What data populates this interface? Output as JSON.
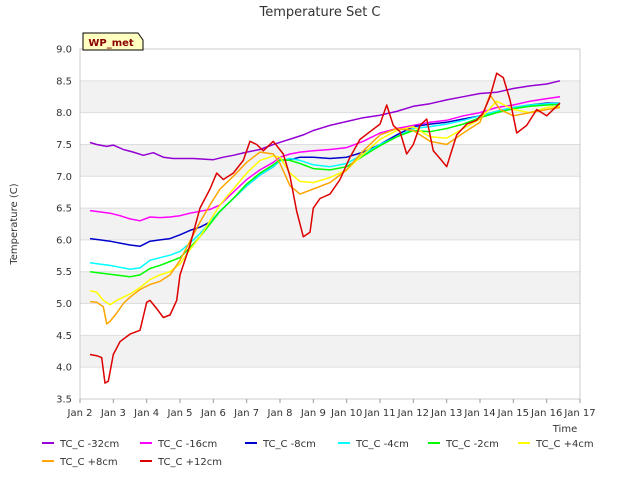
{
  "chart_data": {
    "type": "line",
    "title": "Temperature Set C",
    "xlabel": "Time",
    "ylabel": "Temperature (C)",
    "site_badge": "WP_met",
    "ylim": [
      3.5,
      9.0
    ],
    "xlim": [
      2,
      17
    ],
    "yticks": [
      "3.5",
      "4.0",
      "4.5",
      "5.0",
      "5.5",
      "6.0",
      "6.5",
      "7.0",
      "7.5",
      "8.0",
      "8.5",
      "9.0"
    ],
    "xticks": [
      "Jan 2",
      "Jan 3",
      "Jan 4",
      "Jan 5",
      "Jan 6",
      "Jan 7",
      "Jan 8",
      "Jan 9",
      "Jan 10",
      "Jan 11",
      "Jan 12",
      "Jan 13",
      "Jan 14",
      "Jan 15",
      "Jan 16",
      "Jan 17"
    ],
    "grid": "horizontal bands",
    "legend_position": "bottom",
    "series": [
      {
        "name": "TC_C -32cm",
        "color": "#9400d3",
        "x": [
          2.3,
          2.5,
          2.8,
          3.0,
          3.3,
          3.6,
          3.9,
          4.2,
          4.5,
          4.8,
          5.1,
          5.4,
          5.7,
          6.0,
          6.3,
          6.6,
          7.0,
          7.4,
          7.8,
          8.1,
          8.4,
          8.7,
          9.0,
          9.5,
          10.0,
          10.5,
          11.0,
          11.5,
          12.0,
          12.5,
          13.0,
          13.5,
          14.0,
          14.5,
          15.0,
          15.5,
          16.0,
          16.4
        ],
        "y": [
          7.53,
          7.5,
          7.47,
          7.49,
          7.42,
          7.38,
          7.33,
          7.37,
          7.3,
          7.28,
          7.28,
          7.28,
          7.27,
          7.26,
          7.3,
          7.33,
          7.38,
          7.42,
          7.5,
          7.55,
          7.6,
          7.65,
          7.72,
          7.8,
          7.86,
          7.92,
          7.96,
          8.02,
          8.1,
          8.14,
          8.2,
          8.25,
          8.3,
          8.32,
          8.38,
          8.42,
          8.45,
          8.5
        ]
      },
      {
        "name": "TC_C -16cm",
        "color": "#ff00ff",
        "x": [
          2.3,
          2.6,
          2.9,
          3.2,
          3.5,
          3.8,
          4.1,
          4.4,
          4.7,
          5.0,
          5.3,
          5.6,
          5.9,
          6.2,
          6.6,
          7.0,
          7.4,
          7.8,
          8.0,
          8.3,
          8.6,
          9.0,
          9.5,
          10.0,
          10.5,
          11.0,
          11.5,
          12.0,
          12.5,
          13.0,
          13.5,
          14.0,
          14.5,
          15.0,
          15.5,
          16.0,
          16.4
        ],
        "y": [
          6.46,
          6.44,
          6.42,
          6.38,
          6.33,
          6.3,
          6.36,
          6.35,
          6.36,
          6.38,
          6.42,
          6.45,
          6.48,
          6.55,
          6.75,
          6.95,
          7.1,
          7.22,
          7.3,
          7.35,
          7.38,
          7.4,
          7.42,
          7.45,
          7.55,
          7.68,
          7.75,
          7.8,
          7.85,
          7.88,
          7.95,
          8.0,
          8.08,
          8.12,
          8.18,
          8.22,
          8.25
        ]
      },
      {
        "name": "TC_C -8cm",
        "color": "#0000cd",
        "x": [
          2.3,
          2.6,
          2.9,
          3.2,
          3.5,
          3.8,
          4.1,
          4.4,
          4.7,
          5.0,
          5.3,
          5.6,
          5.9,
          6.2,
          6.6,
          7.0,
          7.4,
          7.8,
          8.0,
          8.3,
          8.6,
          9.0,
          9.5,
          10.0,
          10.5,
          11.0,
          11.5,
          12.0,
          12.5,
          13.0,
          13.5,
          14.0,
          14.5,
          15.0,
          15.5,
          16.0,
          16.4
        ],
        "y": [
          6.02,
          6.0,
          5.98,
          5.95,
          5.92,
          5.9,
          5.98,
          6.0,
          6.02,
          6.08,
          6.15,
          6.2,
          6.28,
          6.45,
          6.65,
          6.85,
          7.02,
          7.15,
          7.25,
          7.26,
          7.3,
          7.3,
          7.28,
          7.3,
          7.38,
          7.5,
          7.65,
          7.78,
          7.82,
          7.85,
          7.9,
          7.95,
          8.02,
          8.08,
          8.12,
          8.15,
          8.15
        ]
      },
      {
        "name": "TC_C -4cm",
        "color": "#00ffff",
        "x": [
          2.3,
          2.6,
          2.9,
          3.2,
          3.5,
          3.8,
          4.1,
          4.4,
          4.7,
          5.0,
          5.3,
          5.6,
          5.9,
          6.2,
          6.6,
          7.0,
          7.4,
          7.8,
          8.0,
          8.3,
          8.6,
          9.0,
          9.5,
          10.0,
          10.5,
          11.0,
          11.5,
          12.0,
          12.5,
          13.0,
          13.5,
          14.0,
          14.5,
          15.0,
          15.5,
          16.0,
          16.4
        ],
        "y": [
          5.64,
          5.62,
          5.6,
          5.57,
          5.54,
          5.56,
          5.68,
          5.72,
          5.76,
          5.82,
          5.95,
          6.1,
          6.28,
          6.45,
          6.65,
          6.85,
          7.02,
          7.15,
          7.24,
          7.28,
          7.25,
          7.18,
          7.15,
          7.2,
          7.35,
          7.5,
          7.62,
          7.75,
          7.78,
          7.82,
          7.88,
          7.95,
          8.02,
          8.08,
          8.12,
          8.14,
          8.15
        ]
      },
      {
        "name": "TC_C -2cm",
        "color": "#00ff00",
        "x": [
          2.3,
          2.6,
          2.9,
          3.2,
          3.5,
          3.8,
          4.1,
          4.4,
          4.7,
          5.0,
          5.3,
          5.6,
          5.9,
          6.2,
          6.6,
          7.0,
          7.4,
          7.8,
          8.0,
          8.3,
          8.6,
          9.0,
          9.5,
          10.0,
          10.5,
          11.0,
          11.5,
          12.0,
          12.5,
          13.0,
          13.5,
          14.0,
          14.5,
          15.0,
          15.5,
          16.0,
          16.4
        ],
        "y": [
          5.5,
          5.48,
          5.46,
          5.44,
          5.42,
          5.45,
          5.55,
          5.6,
          5.66,
          5.72,
          5.88,
          6.05,
          6.25,
          6.45,
          6.65,
          6.88,
          7.05,
          7.18,
          7.26,
          7.25,
          7.2,
          7.12,
          7.1,
          7.15,
          7.32,
          7.48,
          7.62,
          7.72,
          7.7,
          7.75,
          7.82,
          7.92,
          8.0,
          8.06,
          8.1,
          8.12,
          8.13
        ]
      },
      {
        "name": "TC_C +4cm",
        "color": "#ffff00",
        "x": [
          2.3,
          2.5,
          2.7,
          2.9,
          3.1,
          3.3,
          3.5,
          3.8,
          4.1,
          4.4,
          4.7,
          5.0,
          5.3,
          5.6,
          5.9,
          6.2,
          6.6,
          7.0,
          7.4,
          7.8,
          8.0,
          8.3,
          8.6,
          9.0,
          9.5,
          10.0,
          10.5,
          11.0,
          11.5,
          12.0,
          12.5,
          13.0,
          13.5,
          14.0,
          14.5,
          15.0,
          15.5,
          16.0,
          16.4
        ],
        "y": [
          5.2,
          5.18,
          5.05,
          4.98,
          5.05,
          5.1,
          5.15,
          5.25,
          5.38,
          5.45,
          5.5,
          5.62,
          5.85,
          6.05,
          6.3,
          6.55,
          6.8,
          7.05,
          7.25,
          7.32,
          7.3,
          7.05,
          6.92,
          6.9,
          6.98,
          7.1,
          7.35,
          7.58,
          7.72,
          7.78,
          7.62,
          7.6,
          7.75,
          7.9,
          8.18,
          8.05,
          8.0,
          8.08,
          8.1
        ]
      },
      {
        "name": "TC_C +8cm",
        "color": "#ffa500",
        "x": [
          2.3,
          2.5,
          2.7,
          2.8,
          2.9,
          3.1,
          3.3,
          3.5,
          3.8,
          4.1,
          4.4,
          4.7,
          5.0,
          5.3,
          5.6,
          5.9,
          6.2,
          6.6,
          7.0,
          7.4,
          7.8,
          8.0,
          8.3,
          8.6,
          9.0,
          9.5,
          10.0,
          10.5,
          11.0,
          11.5,
          12.0,
          12.5,
          13.0,
          13.5,
          14.0,
          14.3,
          14.6,
          15.0,
          15.5,
          16.0,
          16.4
        ],
        "y": [
          5.03,
          5.02,
          4.95,
          4.68,
          4.72,
          4.85,
          5.0,
          5.1,
          5.22,
          5.3,
          5.35,
          5.45,
          5.68,
          5.98,
          6.28,
          6.55,
          6.8,
          7.0,
          7.22,
          7.38,
          7.35,
          7.2,
          6.85,
          6.72,
          6.8,
          6.9,
          7.1,
          7.4,
          7.65,
          7.75,
          7.72,
          7.55,
          7.5,
          7.68,
          7.85,
          8.28,
          8.05,
          7.95,
          8.0,
          8.05,
          8.08
        ]
      },
      {
        "name": "TC_C +12cm",
        "color": "#dd0000",
        "x": [
          2.3,
          2.5,
          2.65,
          2.75,
          2.85,
          3.0,
          3.2,
          3.5,
          3.8,
          4.0,
          4.1,
          4.3,
          4.5,
          4.7,
          4.9,
          5.0,
          5.3,
          5.6,
          5.9,
          6.1,
          6.3,
          6.6,
          6.9,
          7.1,
          7.3,
          7.5,
          7.8,
          8.1,
          8.3,
          8.5,
          8.7,
          8.9,
          9.0,
          9.2,
          9.5,
          9.8,
          10.1,
          10.4,
          10.7,
          11.0,
          11.2,
          11.4,
          11.6,
          11.8,
          12.0,
          12.2,
          12.4,
          12.6,
          12.8,
          13.0,
          13.3,
          13.6,
          13.9,
          14.1,
          14.3,
          14.5,
          14.7,
          14.9,
          15.1,
          15.4,
          15.7,
          16.0,
          16.4
        ],
        "y": [
          4.2,
          4.18,
          4.15,
          3.75,
          3.78,
          4.2,
          4.4,
          4.52,
          4.58,
          5.02,
          5.05,
          4.92,
          4.78,
          4.82,
          5.05,
          5.45,
          5.92,
          6.5,
          6.8,
          7.05,
          6.95,
          7.05,
          7.25,
          7.55,
          7.5,
          7.4,
          7.55,
          7.35,
          7.0,
          6.45,
          6.05,
          6.12,
          6.5,
          6.65,
          6.72,
          6.95,
          7.3,
          7.58,
          7.7,
          7.82,
          8.12,
          7.8,
          7.7,
          7.35,
          7.5,
          7.8,
          7.9,
          7.4,
          7.28,
          7.15,
          7.65,
          7.82,
          7.88,
          8.0,
          8.25,
          8.62,
          8.55,
          8.2,
          7.68,
          7.8,
          8.05,
          7.95,
          8.15
        ]
      }
    ]
  }
}
